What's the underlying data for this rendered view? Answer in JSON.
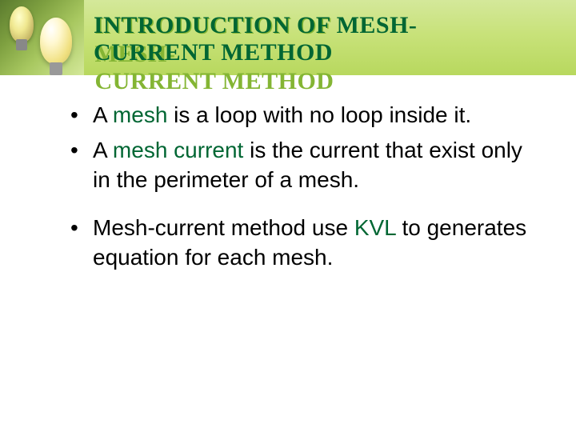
{
  "header": {
    "title_line1": "INTRODUCTION OF MESH-",
    "title_line2": "CURRENT METHOD",
    "bg_gradient_top": "#d4e89a",
    "bg_gradient_bottom": "#b8d85e",
    "title_color": "#006633",
    "title_shadow_color": "#84b534",
    "title_fontsize": 30
  },
  "accent_color": "#006633",
  "body_text_color": "#000000",
  "body_fontsize": 28,
  "bullets": [
    {
      "pre": "A ",
      "term": "mesh",
      "post": " is a loop with no loop inside it."
    },
    {
      "pre": "A ",
      "term": "mesh current",
      "post": " is the current that exist only in the perimeter of a mesh."
    },
    {
      "pre": "Mesh-current method use ",
      "term": "KVL",
      "post": " to generates equation for each mesh."
    }
  ]
}
